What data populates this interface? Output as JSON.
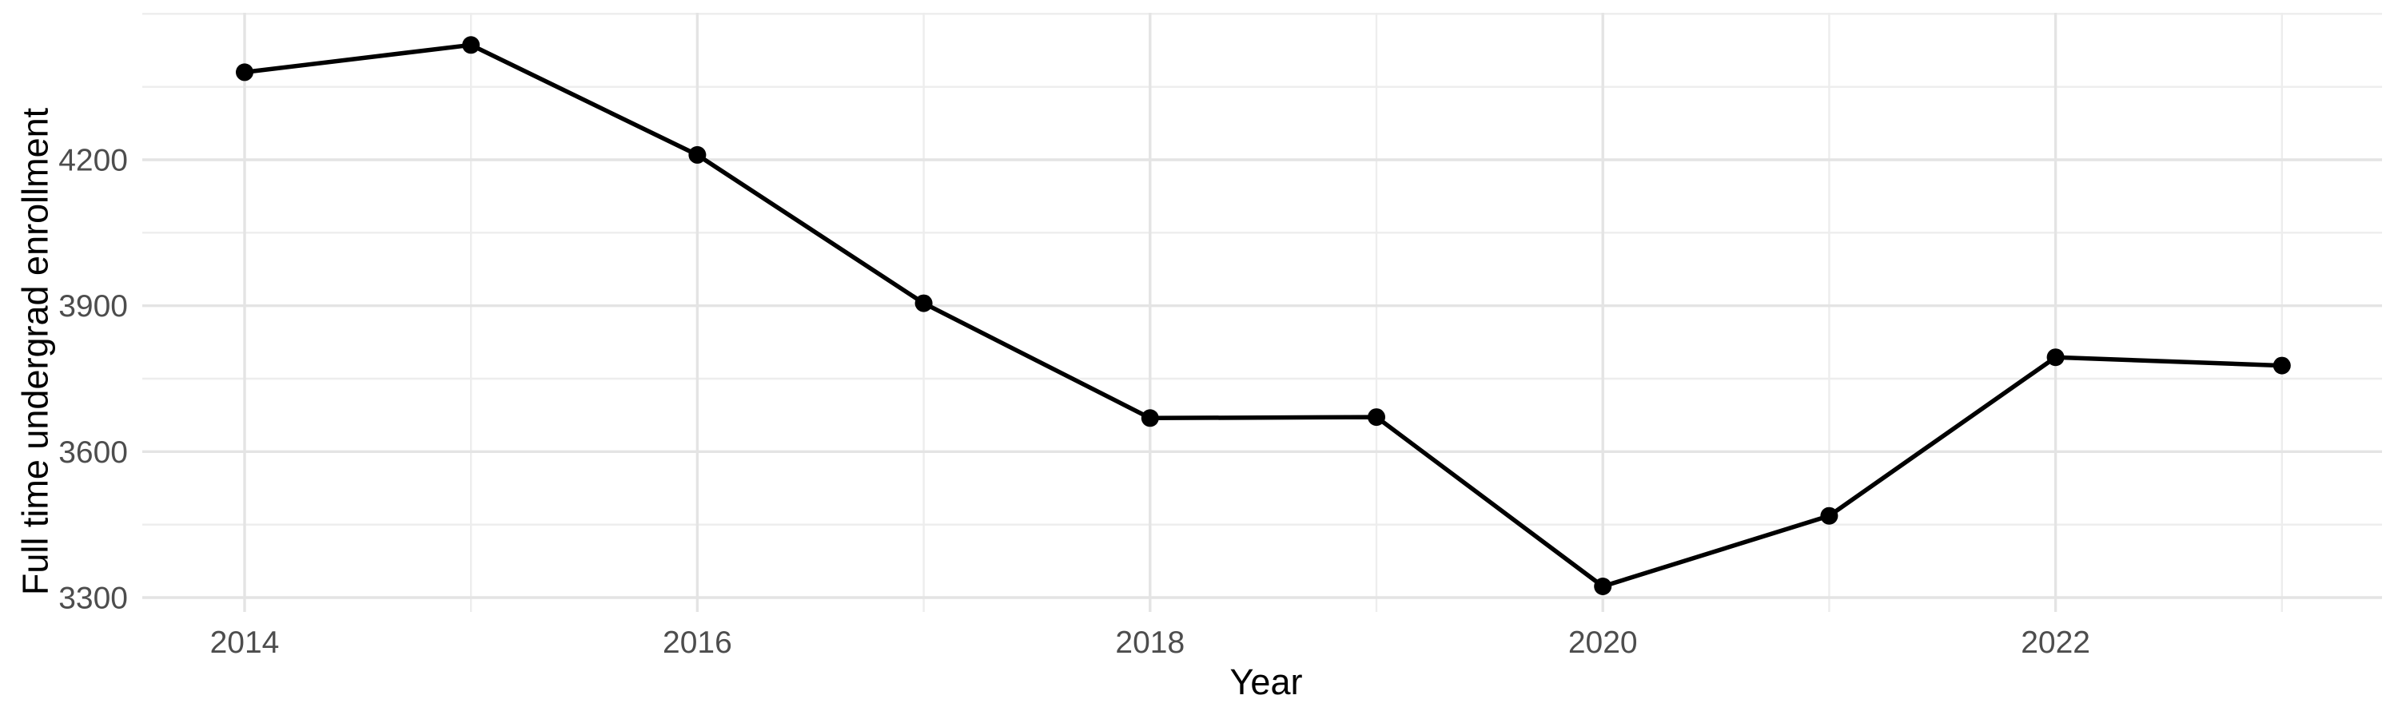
{
  "figure": {
    "xlabel": "Year",
    "ylabel": "Full time undergrad enrollment"
  },
  "chart_data": {
    "type": "line",
    "title": "",
    "xlabel": "Year",
    "ylabel": "Full time undergrad enrollment",
    "series": [
      {
        "name": "Full time undergrad enrollment",
        "x": [
          2014,
          2015,
          2016,
          2017,
          2018,
          2019,
          2020,
          2021,
          2022,
          2023
        ],
        "values": [
          4380,
          4436,
          4210,
          3905,
          3669,
          3671,
          3323,
          3468,
          3794,
          3777
        ]
      }
    ],
    "x_major_ticks": [
      2014,
      2016,
      2018,
      2020,
      2022
    ],
    "x_minor_gridlines": [
      2015,
      2017,
      2019,
      2021,
      2023
    ],
    "y_major_ticks": [
      3300,
      3600,
      3900,
      4200
    ],
    "y_minor_gridlines": [
      3450,
      3750,
      4050,
      4350,
      4500
    ],
    "xlim": [
      2013.55,
      2023.48
    ],
    "ylim": [
      3269,
      4506
    ],
    "grid": true,
    "legend": "none",
    "marker": "filled-circle",
    "colors": {
      "line": "#000000",
      "point": "#000000",
      "grid_major": "#E4E4E4",
      "grid_minor": "#EDEDED",
      "tick_label": "#4D4D4D",
      "axis_title": "#000000",
      "background": "#FFFFFF"
    }
  }
}
